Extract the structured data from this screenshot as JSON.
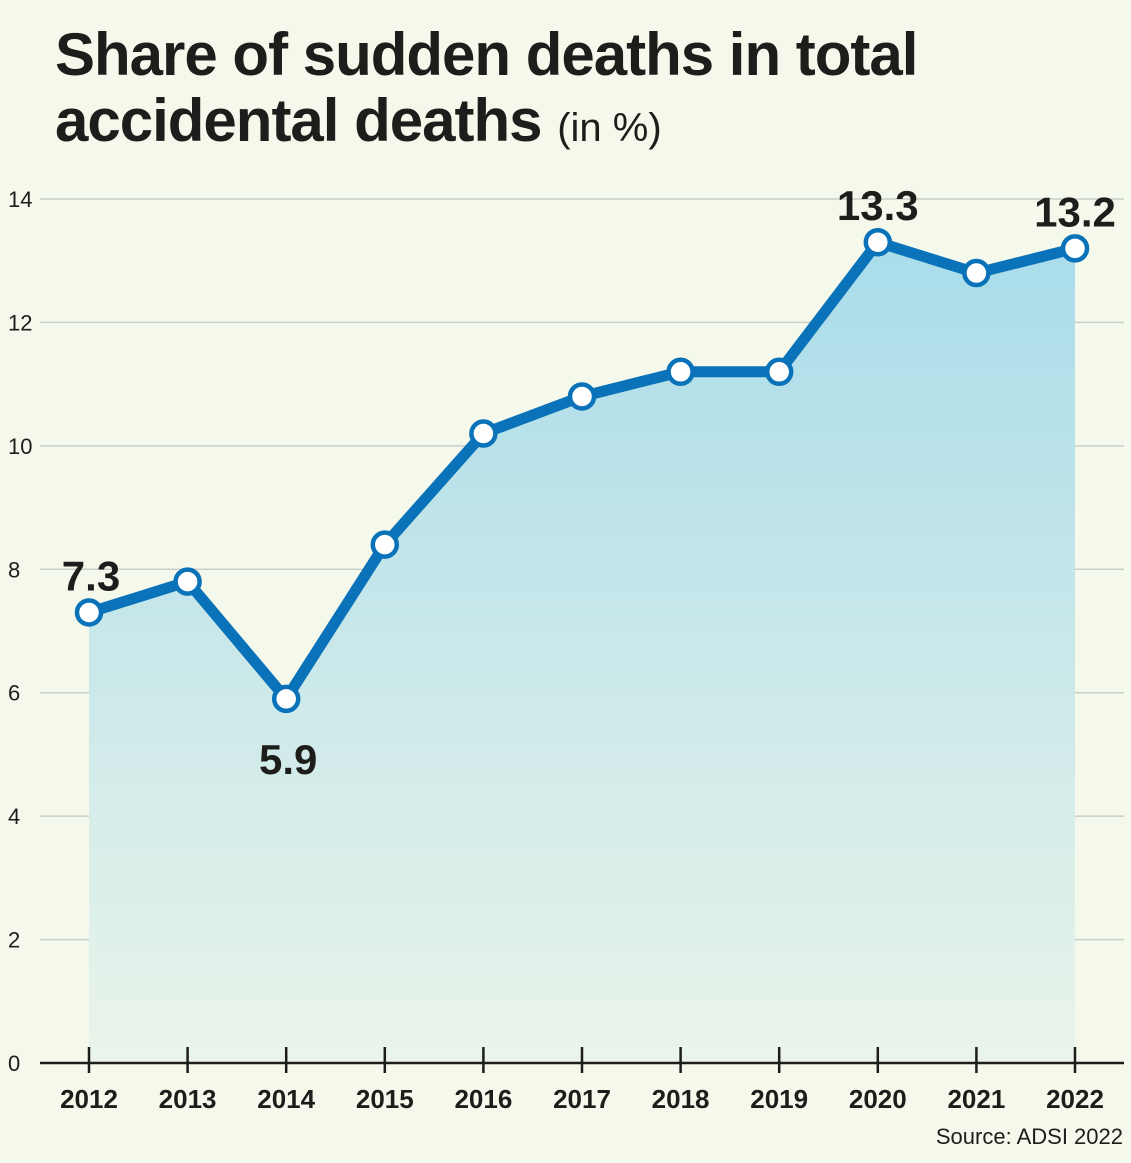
{
  "chart_data": {
    "type": "line",
    "title": "Share of sudden deaths in total accidental deaths",
    "title_unit": "(in %)",
    "categories": [
      "2012",
      "2013",
      "2014",
      "2015",
      "2016",
      "2017",
      "2018",
      "2019",
      "2020",
      "2021",
      "2022"
    ],
    "values": [
      7.3,
      7.8,
      5.9,
      8.4,
      10.2,
      10.8,
      11.2,
      11.2,
      13.3,
      12.8,
      13.2
    ],
    "data_labels": [
      {
        "index": 0,
        "text": "7.3",
        "position": "above"
      },
      {
        "index": 2,
        "text": "5.9",
        "position": "below"
      },
      {
        "index": 8,
        "text": "13.3",
        "position": "above"
      },
      {
        "index": 10,
        "text": "13.2",
        "position": "above"
      }
    ],
    "yticks": [
      0,
      2,
      4,
      6,
      8,
      10,
      12,
      14
    ],
    "ylim": [
      0,
      14
    ],
    "grid": true,
    "area_fill": true,
    "colors": {
      "line": "#0a72b8",
      "area_top": "#a9dcea",
      "area_bottom": "#eaf4ea",
      "marker_fill": "#ffffff",
      "grid": "#c9cfc9",
      "background": "#f5f9ec"
    },
    "source": "Source: ADSI 2022"
  }
}
